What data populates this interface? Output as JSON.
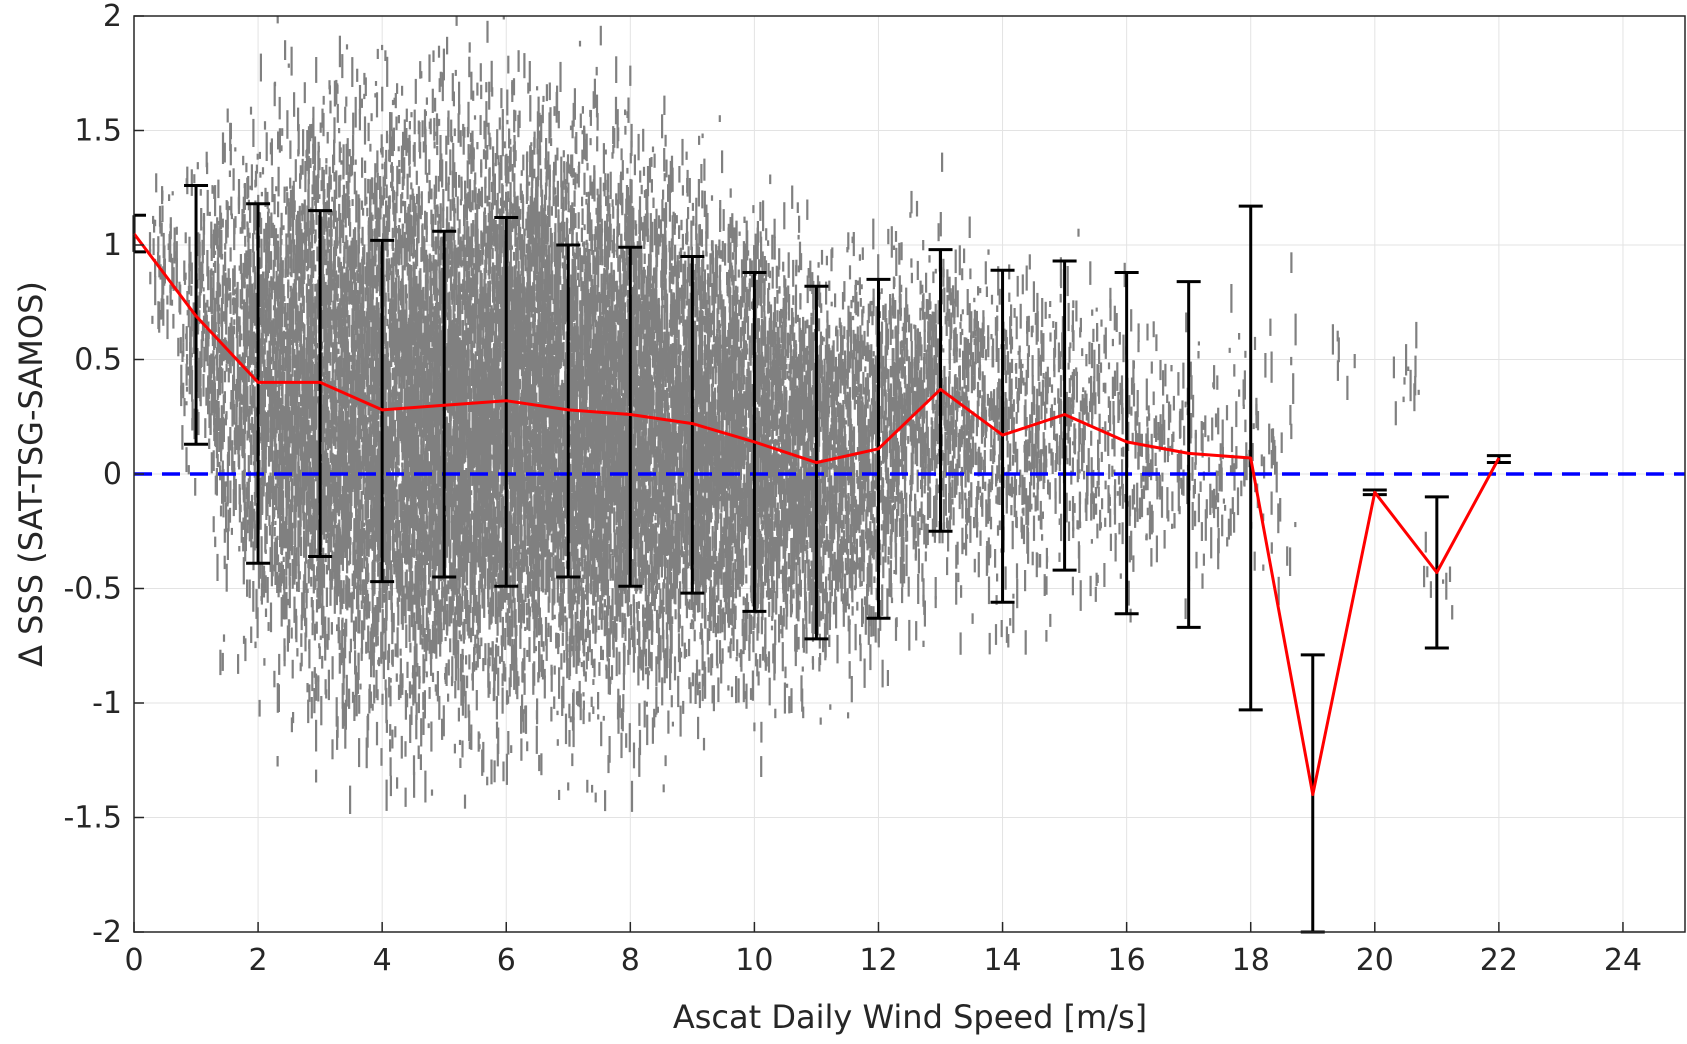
{
  "chart_data": {
    "type": "scatter",
    "title": "",
    "xlabel": "Ascat Daily Wind Speed [m/s]",
    "ylabel": "Δ SSS (SAT-TSG-SAMOS)",
    "xlim": [
      0,
      25
    ],
    "ylim": [
      -2,
      2
    ],
    "xticks": [
      "0",
      "2",
      "4",
      "6",
      "8",
      "10",
      "12",
      "14",
      "16",
      "18",
      "20",
      "22",
      "24"
    ],
    "yticks": [
      "-2",
      "-1.5",
      "-1",
      "-0.5",
      "0",
      "0.5",
      "1",
      "1.5",
      "2"
    ],
    "grid": true,
    "legend": "none",
    "colors": {
      "scatter": "#808080",
      "mean_line": "#ff0000",
      "error_bars": "#000000",
      "zero_line": "#0000ff"
    },
    "series": [
      {
        "kind": "mean_with_std",
        "x": [
          0,
          1,
          2,
          3,
          4,
          5,
          6,
          7,
          8,
          9,
          10,
          11,
          12,
          13,
          14,
          15,
          16,
          17,
          18,
          19,
          20,
          21,
          22
        ],
        "y": [
          1.05,
          0.69,
          0.4,
          0.4,
          0.28,
          0.3,
          0.32,
          0.28,
          0.26,
          0.22,
          0.14,
          0.05,
          0.11,
          0.37,
          0.17,
          0.26,
          0.14,
          0.09,
          0.07,
          -1.4,
          -0.08,
          -0.43,
          0.07
        ],
        "upper": [
          1.13,
          1.26,
          1.18,
          1.15,
          1.02,
          1.06,
          1.12,
          1.0,
          0.99,
          0.95,
          0.88,
          0.82,
          0.85,
          0.98,
          0.89,
          0.93,
          0.88,
          0.84,
          1.17,
          -0.79,
          -0.07,
          -0.1,
          0.08
        ],
        "lower": [
          0.97,
          0.13,
          -0.39,
          -0.36,
          -0.47,
          -0.45,
          -0.49,
          -0.45,
          -0.49,
          -0.52,
          -0.6,
          -0.72,
          -0.63,
          -0.25,
          -0.56,
          -0.42,
          -0.61,
          -0.67,
          -1.03,
          -2.0,
          -0.09,
          -0.76,
          0.05
        ]
      },
      {
        "kind": "reference_line",
        "y": 0
      }
    ],
    "scatter_density": {
      "x": [
        0.5,
        1,
        1.5,
        2,
        2.5,
        3,
        3.5,
        4,
        4.5,
        5,
        5.5,
        6,
        6.5,
        7,
        7.5,
        8,
        8.5,
        9,
        9.5,
        10,
        10.5,
        11,
        11.5,
        12,
        12.5,
        13,
        13.5,
        14,
        14.5,
        15,
        15.5,
        16,
        16.5,
        17,
        17.5,
        18,
        18.5,
        19.5,
        20.5,
        21
      ],
      "center": [
        0.95,
        0.7,
        0.55,
        0.45,
        0.4,
        0.4,
        0.35,
        0.3,
        0.3,
        0.3,
        0.32,
        0.32,
        0.3,
        0.28,
        0.27,
        0.26,
        0.24,
        0.22,
        0.18,
        0.14,
        0.1,
        0.06,
        0.08,
        0.12,
        0.25,
        0.35,
        0.25,
        0.18,
        0.2,
        0.25,
        0.2,
        0.14,
        0.12,
        0.1,
        0.08,
        0.2,
        0.1,
        0.5,
        0.45,
        -0.4
      ],
      "spread": [
        0.35,
        0.6,
        0.9,
        1.0,
        1.1,
        1.15,
        1.2,
        1.2,
        1.2,
        1.2,
        1.2,
        1.2,
        1.2,
        1.15,
        1.15,
        1.1,
        1.05,
        1.0,
        0.95,
        0.9,
        0.85,
        0.85,
        0.8,
        0.8,
        0.75,
        0.7,
        0.7,
        0.7,
        0.65,
        0.65,
        0.6,
        0.6,
        0.55,
        0.55,
        0.5,
        0.5,
        0.8,
        0.15,
        0.25,
        0.15
      ],
      "count": [
        60,
        150,
        300,
        500,
        650,
        750,
        850,
        900,
        950,
        980,
        1000,
        1000,
        980,
        950,
        920,
        880,
        840,
        780,
        720,
        650,
        580,
        500,
        420,
        360,
        300,
        250,
        200,
        170,
        140,
        120,
        100,
        85,
        70,
        55,
        45,
        35,
        25,
        6,
        12,
        8
      ]
    }
  }
}
